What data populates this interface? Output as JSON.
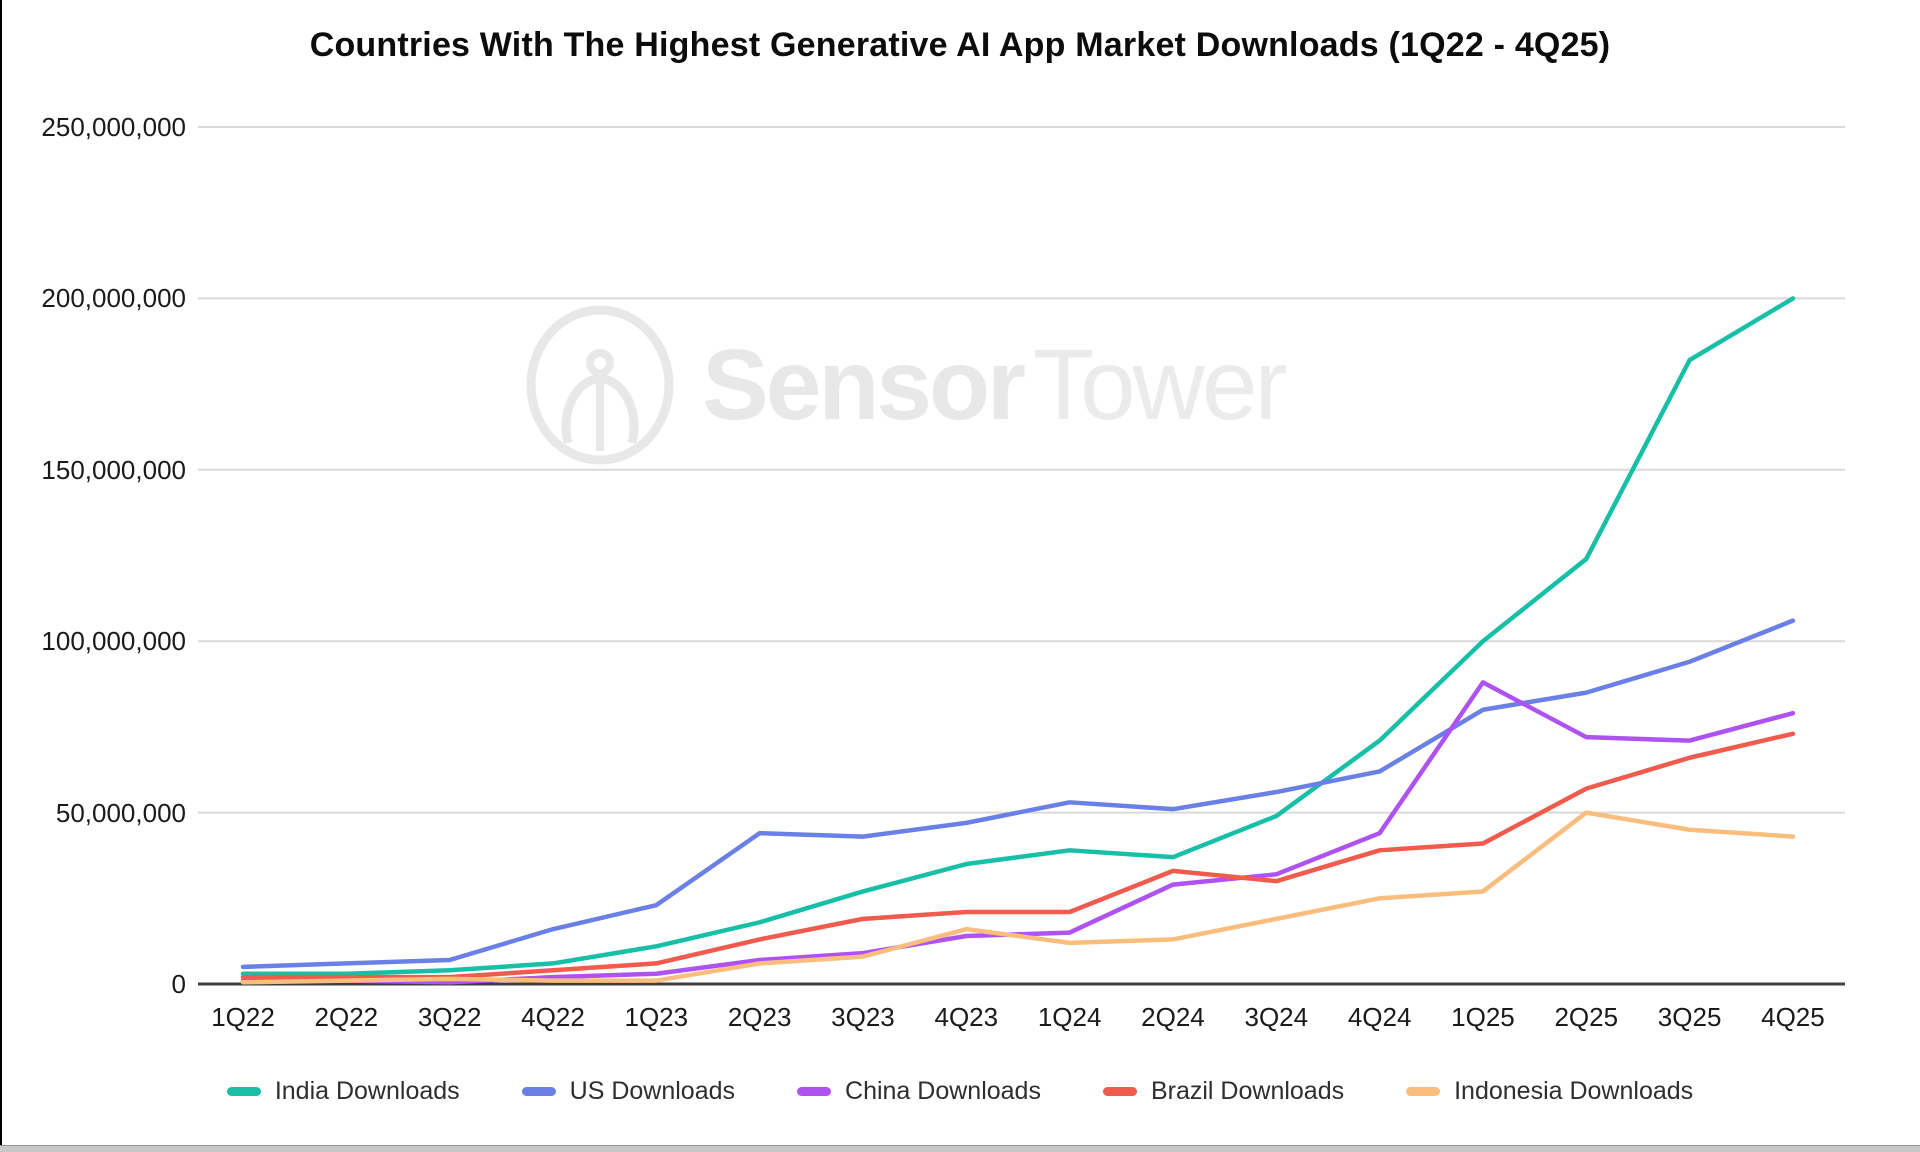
{
  "title": "Countries With The Highest Generative AI App Market Downloads (1Q22 - 4Q25)",
  "watermark": {
    "icon": "sensortower-logo",
    "bold": "Sensor",
    "light": "Tower",
    "color": "#e8e8e8"
  },
  "chart_data": {
    "type": "line",
    "title": "Countries With The Highest Generative AI App Market Downloads (1Q22 - 4Q25)",
    "xlabel": "",
    "ylabel": "",
    "ylim": [
      0,
      250000000
    ],
    "grid": "horizontal",
    "legend_position": "bottom",
    "categories": [
      "1Q22",
      "2Q22",
      "3Q22",
      "4Q22",
      "1Q23",
      "2Q23",
      "3Q23",
      "4Q23",
      "1Q24",
      "2Q24",
      "3Q24",
      "4Q24",
      "1Q25",
      "2Q25",
      "3Q25",
      "4Q25"
    ],
    "y_ticks": [
      {
        "value": 0,
        "label": "0"
      },
      {
        "value": 50000000,
        "label": "50,000,000"
      },
      {
        "value": 100000000,
        "label": "100,000,000"
      },
      {
        "value": 150000000,
        "label": "150,000,000"
      },
      {
        "value": 200000000,
        "label": "200,000,000"
      },
      {
        "value": 250000000,
        "label": "250,000,000"
      }
    ],
    "series": [
      {
        "name": "India Downloads",
        "color": "#18BFA7",
        "values": [
          3000000,
          3000000,
          4000000,
          6000000,
          11000000,
          18000000,
          27000000,
          35000000,
          39000000,
          37000000,
          49000000,
          71000000,
          100000000,
          124000000,
          182000000,
          200000000
        ]
      },
      {
        "name": "US Downloads",
        "color": "#6A80E6",
        "values": [
          5000000,
          6000000,
          7000000,
          16000000,
          23000000,
          44000000,
          43000000,
          47000000,
          53000000,
          51000000,
          56000000,
          62000000,
          80000000,
          85000000,
          94000000,
          106000000
        ]
      },
      {
        "name": "China Downloads",
        "color": "#AF52F2",
        "values": [
          1000000,
          1000000,
          500000,
          2000000,
          3000000,
          7000000,
          9000000,
          14000000,
          15000000,
          29000000,
          32000000,
          44000000,
          88000000,
          72000000,
          71000000,
          79000000
        ]
      },
      {
        "name": "Brazil Downloads",
        "color": "#F15B4D",
        "values": [
          2000000,
          2000000,
          2000000,
          4000000,
          6000000,
          13000000,
          19000000,
          21000000,
          21000000,
          33000000,
          30000000,
          39000000,
          41000000,
          57000000,
          66000000,
          73000000
        ]
      },
      {
        "name": "Indonesia Downloads",
        "color": "#F9BE7E",
        "values": [
          500000,
          1000000,
          1500000,
          1000000,
          1000000,
          6000000,
          8000000,
          16000000,
          12000000,
          13000000,
          19000000,
          25000000,
          27000000,
          50000000,
          45000000,
          43000000
        ]
      }
    ]
  }
}
